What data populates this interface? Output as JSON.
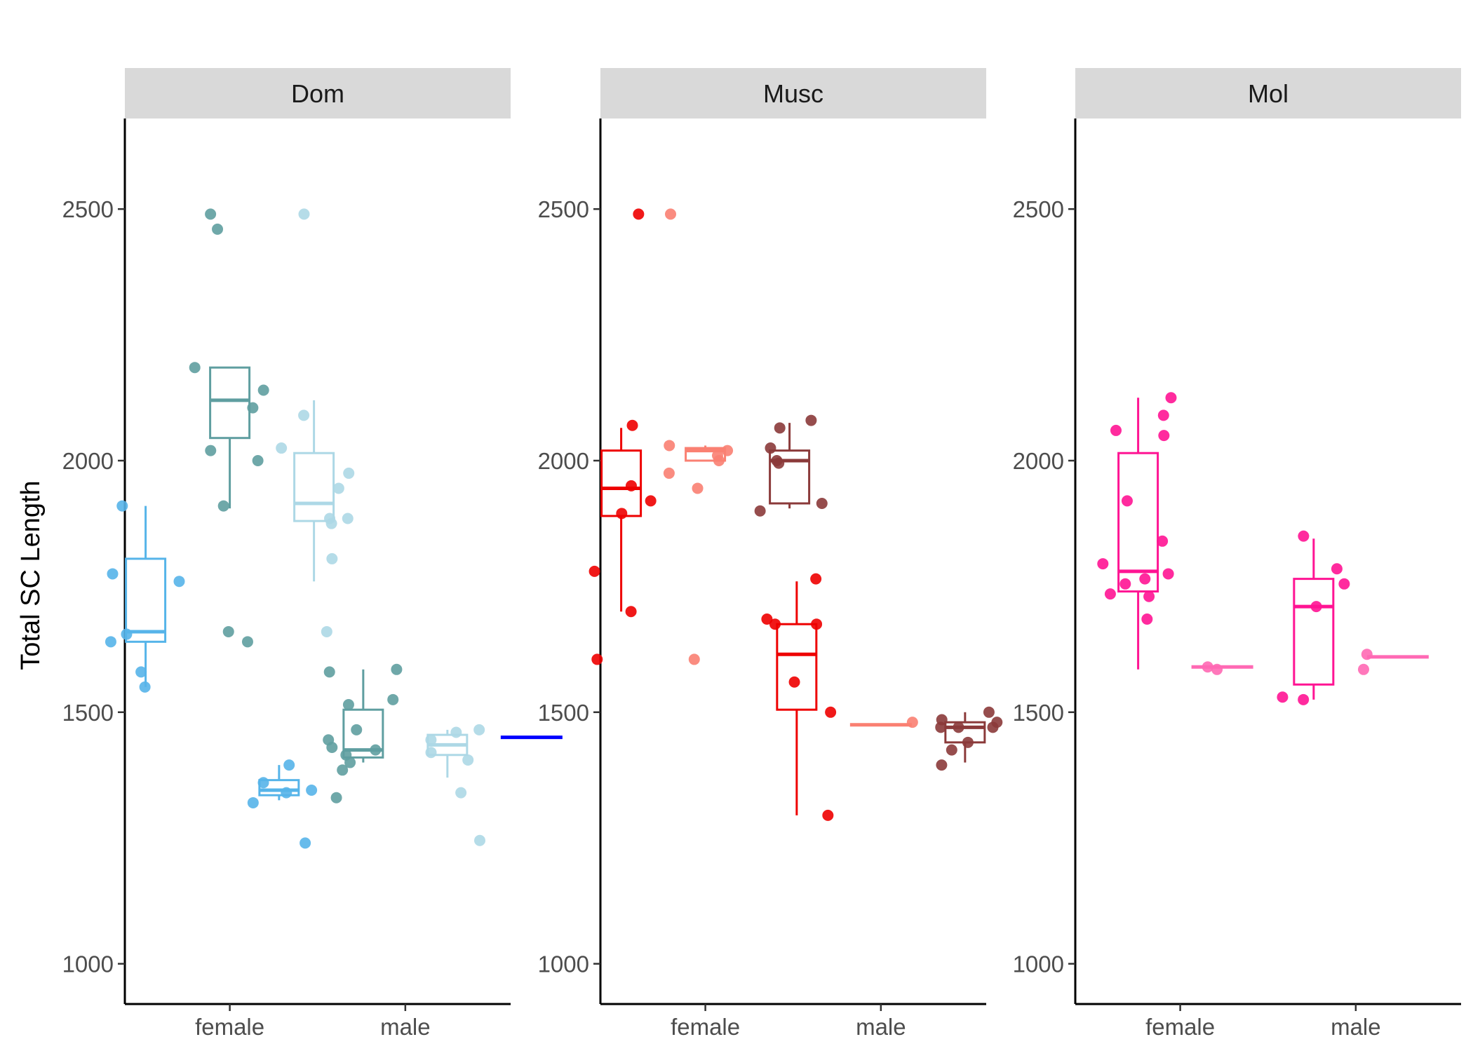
{
  "chart_data": {
    "type": "boxplot",
    "ylabel": "Total SC Length",
    "xlabel": "",
    "ylim": [
      920,
      2680
    ],
    "yticks": [
      1000,
      1500,
      2000,
      2500
    ],
    "categories": [
      "female",
      "male"
    ],
    "grid": false,
    "legend": "none",
    "panels": [
      {
        "name": "Dom",
        "groups": [
          {
            "category": "female",
            "color": "#56B4E9",
            "box": {
              "min": 1550,
              "q1": 1640,
              "median": 1660,
              "q3": 1805,
              "max": 1910
            },
            "points": [
              1580,
              1550,
              1655,
              1640,
              1910,
              1775,
              1760
            ]
          },
          {
            "category": "female",
            "color": "#5F9EA0",
            "box": {
              "min": 1905,
              "q1": 2045,
              "median": 2120,
              "q3": 2185,
              "max": 2185
            },
            "points": [
              2490,
              2460,
              2185,
              2140,
              2105,
              2020,
              2000,
              1910,
              1660,
              1640
            ]
          },
          {
            "category": "female",
            "color": "#ADD8E6",
            "box": {
              "min": 1760,
              "q1": 1880,
              "median": 1915,
              "q3": 2015,
              "max": 2120
            },
            "points": [
              2490,
              2090,
              1885,
              1875,
              1805,
              2025,
              1975,
              1945,
              1885,
              1660
            ]
          },
          {
            "category": "male",
            "color": "#56B4E9",
            "box": {
              "min": 1325,
              "q1": 1335,
              "median": 1345,
              "q3": 1365,
              "max": 1395
            },
            "points": [
              1345,
              1360,
              1340,
              1395,
              1320,
              1240
            ]
          },
          {
            "category": "male",
            "color": "#5F9EA0",
            "box": {
              "min": 1400,
              "q1": 1410,
              "median": 1425,
              "q3": 1505,
              "max": 1585
            },
            "points": [
              1585,
              1465,
              1425,
              1525,
              1515,
              1445,
              1415,
              1385,
              1430,
              1580,
              1400,
              1330
            ]
          },
          {
            "category": "male",
            "color": "#ADD8E6",
            "box": {
              "min": 1370,
              "q1": 1415,
              "median": 1435,
              "q3": 1455,
              "max": 1465
            },
            "points": [
              1445,
              1405,
              1420,
              1340,
              1465,
              1245,
              1460
            ]
          },
          {
            "category": "male",
            "color": "#0000FF",
            "box": {
              "min": 1450,
              "q1": 1450,
              "median": 1450,
              "q3": 1450,
              "max": 1450
            },
            "points": []
          }
        ]
      },
      {
        "name": "Musc",
        "groups": [
          {
            "category": "female",
            "color": "#EE0000",
            "box": {
              "min": 1700,
              "q1": 1890,
              "median": 1945,
              "q3": 2020,
              "max": 2065
            },
            "points": [
              1950,
              1920,
              2070,
              1605,
              2490,
              1700,
              1780,
              1895
            ]
          },
          {
            "category": "female",
            "color": "#FA8072",
            "box": {
              "min": 2000,
              "q1": 2000,
              "median": 2020,
              "q3": 2025,
              "max": 2030
            },
            "points": [
              2490,
              1605,
              2030,
              2010,
              1975,
              2000,
              1945,
              2020
            ]
          },
          {
            "category": "female",
            "color": "#8B3A3A",
            "box": {
              "min": 1905,
              "q1": 1915,
              "median": 2000,
              "q3": 2020,
              "max": 2075
            },
            "points": [
              2080,
              2065,
              1995,
              1900,
              1915,
              2025,
              2000
            ]
          },
          {
            "category": "male",
            "color": "#EE0000",
            "box": {
              "min": 1295,
              "q1": 1505,
              "median": 1615,
              "q3": 1675,
              "max": 1760
            },
            "points": [
              1765,
              1685,
              1675,
              1675,
              1560,
              1500,
              1295
            ]
          },
          {
            "category": "male",
            "color": "#FA8072",
            "box": {
              "min": 1475,
              "q1": 1475,
              "median": 1475,
              "q3": 1475,
              "max": 1475
            },
            "points": [
              1480
            ]
          },
          {
            "category": "male",
            "color": "#8B3A3A",
            "box": {
              "min": 1400,
              "q1": 1440,
              "median": 1470,
              "q3": 1480,
              "max": 1500
            },
            "points": [
              1500,
              1480,
              1470,
              1425,
              1395,
              1440,
              1485,
              1470,
              1470
            ]
          }
        ]
      },
      {
        "name": "Mol",
        "groups": [
          {
            "category": "female",
            "color": "#FF1493",
            "box": {
              "min": 1585,
              "q1": 1740,
              "median": 1780,
              "q3": 2015,
              "max": 2125
            },
            "points": [
              2125,
              2050,
              1920,
              1685,
              2090,
              2060,
              1840,
              1775,
              1765,
              1795,
              1755,
              1730,
              1735
            ]
          },
          {
            "category": "female",
            "color": "#FF69B4",
            "box": {
              "min": 1590,
              "q1": 1590,
              "median": 1590,
              "q3": 1590,
              "max": 1590
            },
            "points": [
              1590,
              1585
            ]
          },
          {
            "category": "male",
            "color": "#FF1493",
            "box": {
              "min": 1525,
              "q1": 1555,
              "median": 1710,
              "q3": 1765,
              "max": 1845
            },
            "points": [
              1850,
              1530,
              1525,
              1710,
              1755,
              1785
            ]
          },
          {
            "category": "male",
            "color": "#FF69B4",
            "box": {
              "min": 1610,
              "q1": 1610,
              "median": 1610,
              "q3": 1610,
              "max": 1610
            },
            "points": [
              1615,
              1585
            ]
          }
        ]
      }
    ]
  }
}
